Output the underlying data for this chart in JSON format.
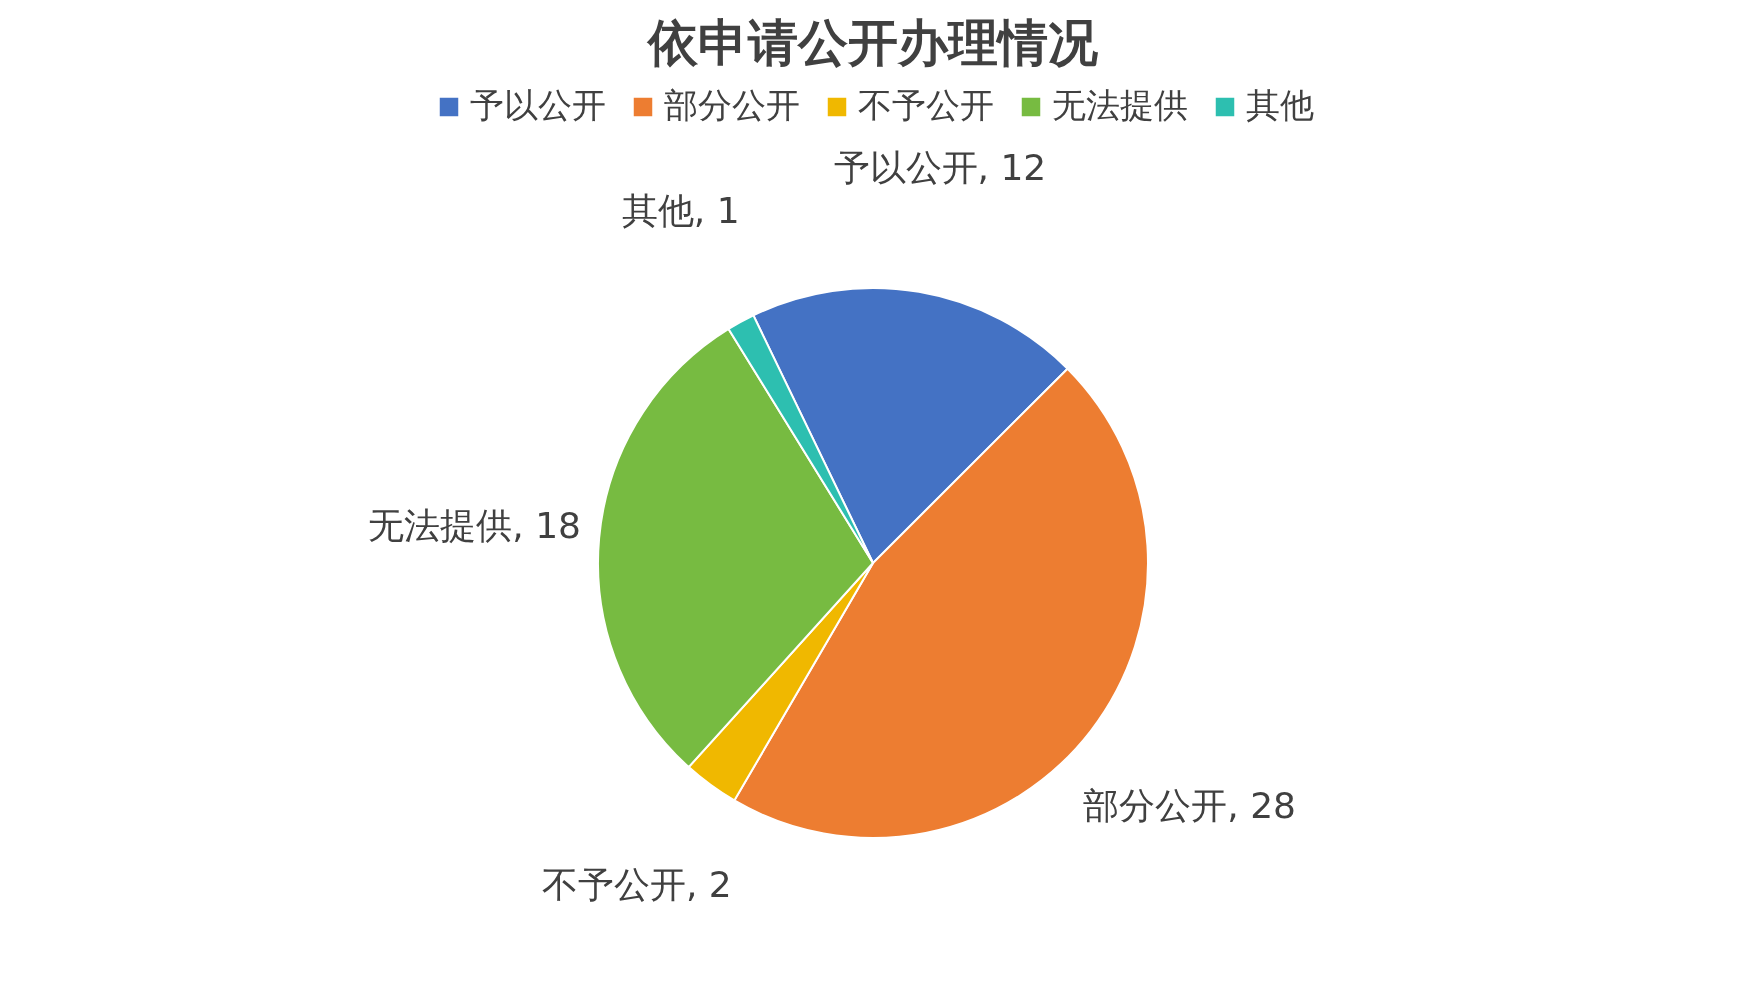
{
  "chart_data": {
    "type": "pie",
    "title": "依申请公开办理情况",
    "categories": [
      "予以公开",
      "部分公开",
      "不予公开",
      "无法提供",
      "其他"
    ],
    "values": [
      12,
      28,
      2,
      18,
      1
    ],
    "value_labels": [
      "予以公开, 12",
      "部分公开, 28",
      "不予公开, 2",
      "无法提供, 18",
      "其他, 1"
    ],
    "colors": [
      "#4472c4",
      "#ed7d31",
      "#f0b800",
      "#77bb41",
      "#2dbfb0"
    ],
    "legend": "top"
  }
}
